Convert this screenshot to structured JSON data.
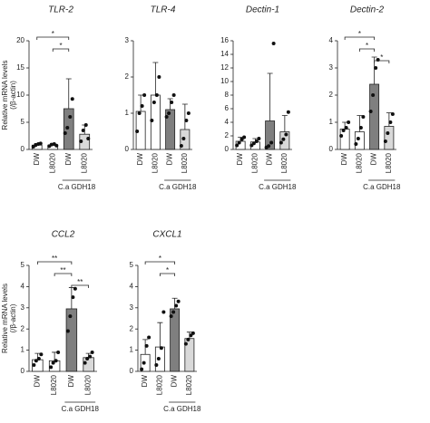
{
  "chart_data": [
    {
      "type": "bar",
      "title": "TLR-2",
      "ylabel": [
        "Relative mRNA levels",
        "(/β-actin)"
      ],
      "categories": [
        "DW",
        "L8020",
        "DW",
        "L8020"
      ],
      "values": [
        0.8,
        0.8,
        7.5,
        2.8
      ],
      "errors": [
        0.3,
        0.2,
        5.5,
        1.7
      ],
      "points": [
        [
          0.5,
          0.8,
          1.0,
          1.1
        ],
        [
          0.6,
          0.9,
          1.0,
          0.7
        ],
        [
          3.0,
          4.0,
          6.0,
          9.3
        ],
        [
          1.5,
          3.5,
          4.5,
          2.0
        ]
      ],
      "colors": [
        "#ffffff",
        "#ffffff",
        "#7f7f7f",
        "#d9d9d9"
      ],
      "ylim": [
        0,
        20
      ],
      "yticks": [
        0,
        5,
        10,
        15,
        20
      ],
      "significance": [
        {
          "from": 0,
          "to": 2,
          "label": "*"
        },
        {
          "from": 1,
          "to": 2,
          "label": "*"
        }
      ],
      "group": {
        "label": "C.a GDH18",
        "from": 2,
        "to": 3
      }
    },
    {
      "type": "bar",
      "title": "TLR-4",
      "categories": [
        "DW",
        "L8020",
        "DW",
        "L8020"
      ],
      "values": [
        1.05,
        1.5,
        1.1,
        0.55
      ],
      "errors": [
        0.45,
        0.9,
        0.3,
        0.7
      ],
      "points": [
        [
          0.5,
          1.0,
          1.2,
          1.5
        ],
        [
          0.8,
          1.3,
          1.5,
          2.0
        ],
        [
          0.9,
          1.0,
          1.3,
          1.5
        ],
        [
          0.1,
          0.3,
          0.8,
          1.0
        ]
      ],
      "colors": [
        "#ffffff",
        "#ffffff",
        "#7f7f7f",
        "#d9d9d9"
      ],
      "ylim": [
        0,
        3
      ],
      "yticks": [
        0,
        1,
        2,
        3
      ],
      "significance": [],
      "group": {
        "label": "C.a GDH18",
        "from": 2,
        "to": 3
      }
    },
    {
      "type": "bar",
      "title": "Dectin-1",
      "categories": [
        "DW",
        "L8020",
        "DW",
        "L8020"
      ],
      "values": [
        1.2,
        1.1,
        4.2,
        2.6
      ],
      "errors": [
        0.6,
        0.5,
        7.0,
        2.4
      ],
      "points": [
        [
          0.6,
          1.0,
          1.5,
          1.8
        ],
        [
          0.6,
          0.9,
          1.2,
          1.6
        ],
        [
          0.3,
          0.5,
          1.0,
          15.6
        ],
        [
          1.0,
          1.5,
          2.2,
          5.5
        ]
      ],
      "colors": [
        "#ffffff",
        "#ffffff",
        "#7f7f7f",
        "#d9d9d9"
      ],
      "ylim": [
        0,
        16
      ],
      "yticks": [
        0,
        2,
        4,
        6,
        8,
        10,
        12,
        14,
        16
      ],
      "significance": [],
      "group": {
        "label": "C.a GDH18",
        "from": 2,
        "to": 3
      }
    },
    {
      "type": "bar",
      "title": "Dectin-2",
      "categories": [
        "DW",
        "L8020",
        "DW",
        "L8020"
      ],
      "values": [
        0.75,
        0.65,
        2.4,
        0.85
      ],
      "errors": [
        0.25,
        0.6,
        1.0,
        0.5
      ],
      "points": [
        [
          0.5,
          0.7,
          0.8,
          1.0
        ],
        [
          0.2,
          0.4,
          0.8,
          1.2
        ],
        [
          1.4,
          2.0,
          3.0,
          3.3
        ],
        [
          0.3,
          0.6,
          1.0,
          1.3
        ]
      ],
      "colors": [
        "#ffffff",
        "#ffffff",
        "#7f7f7f",
        "#d9d9d9"
      ],
      "ylim": [
        0,
        4
      ],
      "yticks": [
        0,
        1,
        2,
        3,
        4
      ],
      "significance": [
        {
          "from": 0,
          "to": 2,
          "label": "*"
        },
        {
          "from": 1,
          "to": 2,
          "label": "*"
        },
        {
          "from": 2,
          "to": 3,
          "label": "*"
        }
      ],
      "group": {
        "label": "C.a GDH18",
        "from": 2,
        "to": 3
      }
    },
    {
      "type": "bar",
      "title": "CCL2",
      "ylabel": [
        "Relative mRNA levels",
        "(/β-actin)"
      ],
      "categories": [
        "DW",
        "L8020",
        "DW",
        "L8020"
      ],
      "values": [
        0.55,
        0.5,
        2.95,
        0.65
      ],
      "errors": [
        0.3,
        0.4,
        1.0,
        0.2
      ],
      "points": [
        [
          0.3,
          0.5,
          0.6,
          0.8
        ],
        [
          0.2,
          0.4,
          0.5,
          0.9
        ],
        [
          1.9,
          2.6,
          3.5,
          3.9
        ],
        [
          0.4,
          0.6,
          0.7,
          0.9
        ]
      ],
      "colors": [
        "#ffffff",
        "#ffffff",
        "#7f7f7f",
        "#d9d9d9"
      ],
      "ylim": [
        0,
        5
      ],
      "yticks": [
        0,
        1,
        2,
        3,
        4,
        5
      ],
      "significance": [
        {
          "from": 0,
          "to": 2,
          "label": "**"
        },
        {
          "from": 1,
          "to": 2,
          "label": "**"
        },
        {
          "from": 2,
          "to": 3,
          "label": "**"
        }
      ],
      "group": {
        "label": "C.a GDH18",
        "from": 2,
        "to": 3
      }
    },
    {
      "type": "bar",
      "title": "CXCL1",
      "categories": [
        "DW",
        "L8020",
        "DW",
        "L8020"
      ],
      "values": [
        0.8,
        1.15,
        2.95,
        1.55
      ],
      "errors": [
        0.7,
        1.15,
        0.5,
        0.3
      ],
      "points": [
        [
          0.1,
          0.4,
          1.2,
          1.6
        ],
        [
          0.3,
          0.6,
          1.1,
          2.8
        ],
        [
          2.6,
          2.8,
          3.1,
          3.3
        ],
        [
          1.3,
          1.5,
          1.7,
          1.8
        ]
      ],
      "colors": [
        "#ffffff",
        "#ffffff",
        "#7f7f7f",
        "#d9d9d9"
      ],
      "ylim": [
        0,
        5
      ],
      "yticks": [
        0,
        1,
        2,
        3,
        4,
        5
      ],
      "significance": [
        {
          "from": 0,
          "to": 2,
          "label": "*"
        },
        {
          "from": 1,
          "to": 2,
          "label": "*"
        }
      ],
      "group": {
        "label": "C.a GDH18",
        "from": 2,
        "to": 3
      }
    }
  ]
}
